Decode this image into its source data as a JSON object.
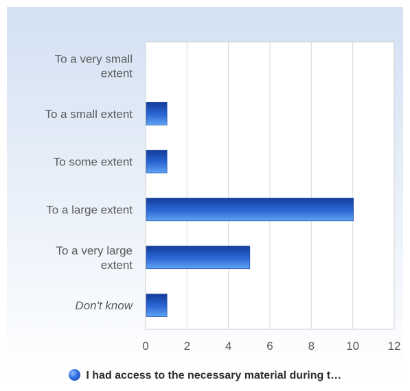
{
  "chart_data": {
    "type": "bar",
    "orientation": "horizontal",
    "categories": [
      "To a very small extent",
      "To a small extent",
      "To some extent",
      "To a large extent",
      "To a very large extent",
      "Don't know"
    ],
    "category_lines": [
      [
        "To a very small",
        "extent"
      ],
      [
        "To a small extent"
      ],
      [
        "To some extent"
      ],
      [
        "To a large extent"
      ],
      [
        "To a very large",
        "extent"
      ],
      [
        "Don't know"
      ]
    ],
    "italic_categories": [
      "Don't know"
    ],
    "series": [
      {
        "name": "I had access to the necessary material during t…",
        "values": [
          0,
          1,
          1,
          10,
          5,
          1
        ]
      }
    ],
    "xlim": [
      0,
      12
    ],
    "xticks": [
      0,
      2,
      4,
      6,
      8,
      10,
      12
    ],
    "grid": true,
    "legend_position": "bottom",
    "colors": {
      "background": "#dae6f5",
      "plot_background": "#ffffff",
      "bar_top": "#123c9b",
      "bar_mid": "#2d68d6",
      "bar_bottom": "#5fa4f3",
      "grid": "#d9d9d9",
      "label": "#595959"
    }
  },
  "legend": {
    "label": "I had access to the necessary material during t…"
  }
}
